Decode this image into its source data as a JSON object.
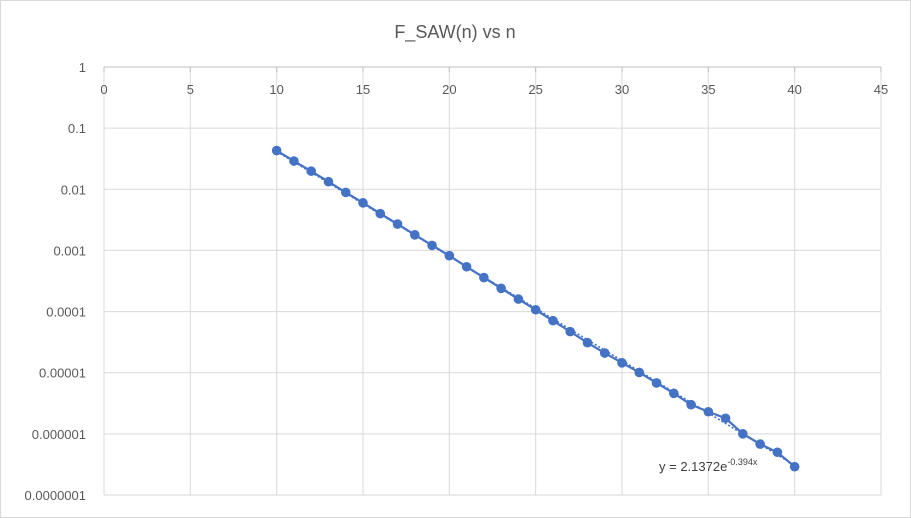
{
  "chart_data": {
    "type": "scatter",
    "title": "F_SAW(n) vs n",
    "xlabel": "",
    "ylabel": "",
    "x_scale": "linear",
    "y_scale": "log",
    "xlim": [
      0,
      45
    ],
    "ylim": [
      1e-07,
      1
    ],
    "x_ticks": [
      "0",
      "5",
      "10",
      "15",
      "20",
      "25",
      "30",
      "35",
      "40",
      "45"
    ],
    "y_ticks": [
      "1",
      "0.1",
      "0.01",
      "0.001",
      "0.0001",
      "0.00001",
      "0.000001",
      "0.0000001"
    ],
    "grid": true,
    "legend": "none",
    "series": [
      {
        "x": [
          10,
          11,
          12,
          13,
          14,
          15,
          16,
          17,
          18,
          19,
          20,
          21,
          22,
          23,
          24,
          25,
          26,
          27,
          28,
          29,
          30,
          31,
          32,
          33,
          34,
          35,
          36,
          37,
          38,
          39,
          40
        ],
        "y": [
          0.043,
          0.029,
          0.0198,
          0.0133,
          0.0089,
          0.006,
          0.004,
          0.0027,
          0.0018,
          0.00121,
          0.00082,
          0.00054,
          0.00036,
          0.00024,
          0.00016,
          0.000107,
          7.1e-05,
          4.7e-05,
          3.1e-05,
          2.1e-05,
          1.45e-05,
          1.01e-05,
          6.8e-06,
          4.6e-06,
          3e-06,
          2.3e-06,
          1.8e-06,
          1e-06,
          6.8e-07,
          5e-07,
          2.9e-07
        ],
        "color": "#4472c4"
      }
    ],
    "trendline": {
      "type": "exponential",
      "a": 2.1372,
      "b": -0.394,
      "x_range": [
        10,
        40
      ],
      "label_prefix": "y = 2.1372e",
      "label_exponent": "-0.394x",
      "color": "#4472c4"
    }
  }
}
